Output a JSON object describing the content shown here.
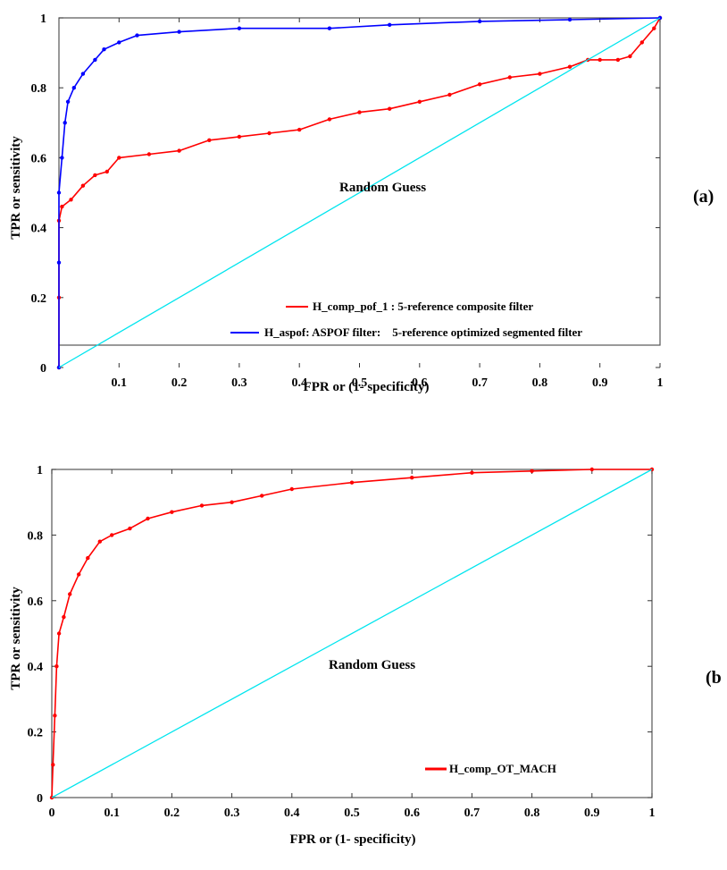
{
  "chart_data": [
    {
      "type": "line",
      "panel_label": "(a)",
      "xlabel": "FPR or (1- specificity)",
      "ylabel": "TPR or sensitivity",
      "xlim": [
        0,
        1
      ],
      "ylim": [
        0,
        1
      ],
      "x_ticks": [
        "0.1",
        "0.2",
        "0.3",
        "0.4",
        "0.5",
        "0.6",
        "0.7",
        "0.8",
        "0.9",
        "1"
      ],
      "y_ticks": [
        "0",
        "0.2",
        "0.4",
        "0.6",
        "0.8",
        "1"
      ],
      "annotation": "Random Guess",
      "grid": false,
      "legend_position": "bottom-right",
      "series": [
        {
          "name": "H_comp_pof_1 : 5-reference composite filter",
          "color": "#ff0000",
          "points": [
            [
              0,
              0
            ],
            [
              0,
              0.2
            ],
            [
              0,
              0.42
            ],
            [
              0.005,
              0.46
            ],
            [
              0.02,
              0.48
            ],
            [
              0.04,
              0.52
            ],
            [
              0.06,
              0.55
            ],
            [
              0.08,
              0.56
            ],
            [
              0.1,
              0.6
            ],
            [
              0.15,
              0.61
            ],
            [
              0.2,
              0.62
            ],
            [
              0.25,
              0.65
            ],
            [
              0.3,
              0.66
            ],
            [
              0.35,
              0.67
            ],
            [
              0.4,
              0.68
            ],
            [
              0.45,
              0.71
            ],
            [
              0.5,
              0.73
            ],
            [
              0.55,
              0.74
            ],
            [
              0.6,
              0.76
            ],
            [
              0.65,
              0.78
            ],
            [
              0.7,
              0.81
            ],
            [
              0.75,
              0.83
            ],
            [
              0.8,
              0.84
            ],
            [
              0.85,
              0.86
            ],
            [
              0.88,
              0.88
            ],
            [
              0.9,
              0.88
            ],
            [
              0.93,
              0.88
            ],
            [
              0.95,
              0.89
            ],
            [
              0.97,
              0.93
            ],
            [
              0.99,
              0.97
            ],
            [
              1,
              1
            ]
          ]
        },
        {
          "name": "H_aspof: ASPOF filter:    5-reference optimized segmented filter",
          "color": "#0000ff",
          "points": [
            [
              0,
              0
            ],
            [
              0,
              0.3
            ],
            [
              0,
              0.5
            ],
            [
              0.005,
              0.6
            ],
            [
              0.01,
              0.7
            ],
            [
              0.015,
              0.76
            ],
            [
              0.025,
              0.8
            ],
            [
              0.04,
              0.84
            ],
            [
              0.06,
              0.88
            ],
            [
              0.075,
              0.91
            ],
            [
              0.1,
              0.93
            ],
            [
              0.13,
              0.95
            ],
            [
              0.2,
              0.96
            ],
            [
              0.3,
              0.97
            ],
            [
              0.45,
              0.97
            ],
            [
              0.55,
              0.98
            ],
            [
              0.7,
              0.99
            ],
            [
              0.85,
              0.995
            ],
            [
              1,
              1
            ]
          ]
        },
        {
          "name": "",
          "color": "#00e5ee",
          "points": [
            [
              0,
              0
            ],
            [
              1,
              1
            ]
          ]
        }
      ]
    },
    {
      "type": "line",
      "panel_label": "(b",
      "xlabel": "FPR or (1- specificity)",
      "ylabel": "TPR or sensitivity",
      "xlim": [
        0,
        1
      ],
      "ylim": [
        0,
        1
      ],
      "x_ticks": [
        "0",
        "0.1",
        "0.2",
        "0.3",
        "0.4",
        "0.5",
        "0.6",
        "0.7",
        "0.8",
        "0.9",
        "1"
      ],
      "y_ticks": [
        "0",
        "0.2",
        "0.4",
        "0.6",
        "0.8",
        "1"
      ],
      "annotation": "Random Guess",
      "grid": false,
      "legend_position": "bottom-right",
      "series": [
        {
          "name": "H_comp_OT_MACH",
          "color": "#ff0000",
          "points": [
            [
              0,
              0
            ],
            [
              0.002,
              0.1
            ],
            [
              0.005,
              0.25
            ],
            [
              0.008,
              0.4
            ],
            [
              0.012,
              0.5
            ],
            [
              0.02,
              0.55
            ],
            [
              0.03,
              0.62
            ],
            [
              0.045,
              0.68
            ],
            [
              0.06,
              0.73
            ],
            [
              0.08,
              0.78
            ],
            [
              0.1,
              0.8
            ],
            [
              0.13,
              0.82
            ],
            [
              0.16,
              0.85
            ],
            [
              0.2,
              0.87
            ],
            [
              0.25,
              0.89
            ],
            [
              0.3,
              0.9
            ],
            [
              0.35,
              0.92
            ],
            [
              0.4,
              0.94
            ],
            [
              0.5,
              0.96
            ],
            [
              0.6,
              0.975
            ],
            [
              0.7,
              0.99
            ],
            [
              0.8,
              0.995
            ],
            [
              0.9,
              1
            ],
            [
              1,
              1
            ]
          ]
        },
        {
          "name": "",
          "color": "#00e5ee",
          "points": [
            [
              0,
              0
            ],
            [
              1,
              1
            ]
          ]
        }
      ]
    }
  ]
}
